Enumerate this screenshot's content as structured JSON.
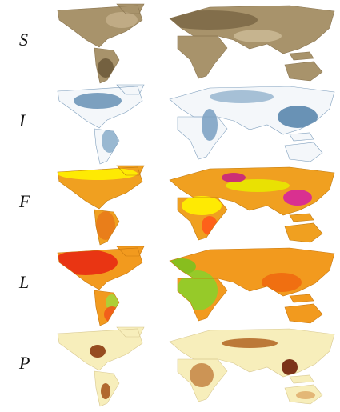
{
  "panels": [
    {
      "label": "S"
    },
    {
      "label": "I"
    },
    {
      "label": "F"
    },
    {
      "label": "L"
    },
    {
      "label": "P"
    }
  ]
}
